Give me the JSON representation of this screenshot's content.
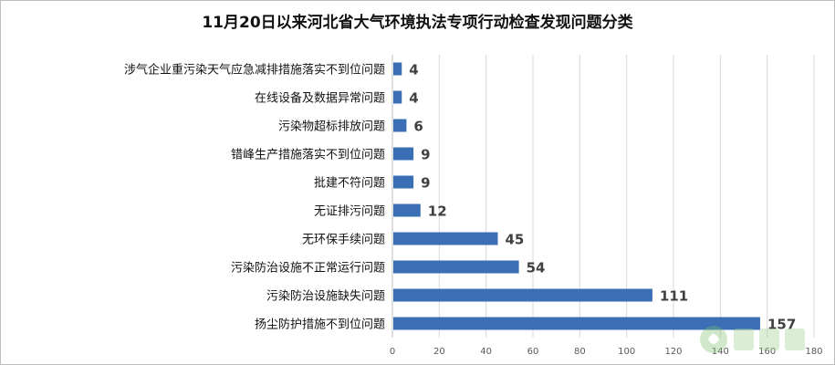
{
  "chart_data": {
    "type": "bar",
    "orientation": "horizontal",
    "title": "11月20日以来河北省大气环境执法专项行动检查发现问题分类",
    "categories": [
      "涉气企业重污染天气应急减排措施落实不到位问题",
      "在线设备及数据异常问题",
      "污染物超标排放问题",
      "错峰生产措施落实不到位问题",
      "批建不符问题",
      "无证排污问题",
      "无环保手续问题",
      "污染防治设施不正常运行问题",
      "污染防治设施缺失问题",
      "扬尘防护措施不到位问题"
    ],
    "values": [
      4,
      4,
      6,
      9,
      9,
      12,
      45,
      54,
      111,
      157
    ],
    "xlim": [
      0,
      180
    ],
    "xticks": [
      0,
      20,
      40,
      60,
      80,
      100,
      120,
      140,
      160,
      180
    ],
    "grid": true,
    "legend": "none",
    "bar_color": "#3a6fb6",
    "grid_color": "#d9d9d9"
  }
}
